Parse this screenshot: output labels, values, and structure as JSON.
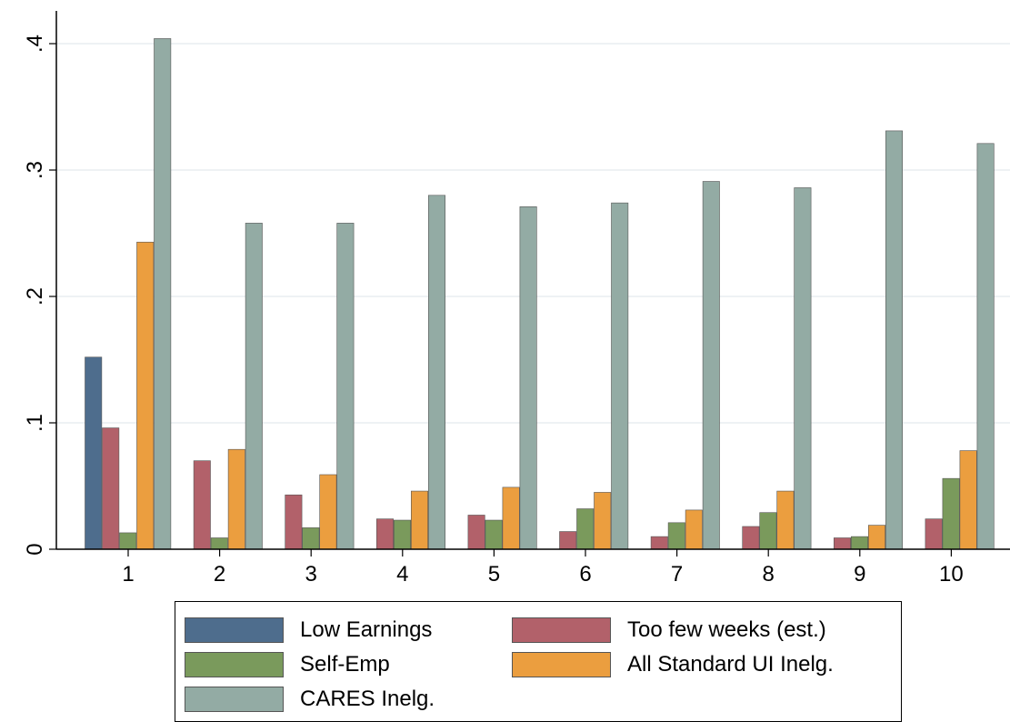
{
  "chart_data": {
    "type": "bar",
    "categories": [
      "1",
      "2",
      "3",
      "4",
      "5",
      "6",
      "7",
      "8",
      "9",
      "10"
    ],
    "series": [
      {
        "name": "Low Earnings",
        "color": "#4e6d8d",
        "values": [
          0.152,
          0,
          0,
          0,
          0,
          0,
          0,
          0,
          0,
          0
        ]
      },
      {
        "name": "Too few weeks (est.)",
        "color": "#b2616a",
        "values": [
          0.096,
          0.07,
          0.043,
          0.024,
          0.027,
          0.014,
          0.01,
          0.018,
          0.009,
          0.024
        ]
      },
      {
        "name": "Self-Emp",
        "color": "#7a9a5c",
        "values": [
          0.013,
          0.009,
          0.017,
          0.023,
          0.023,
          0.032,
          0.021,
          0.029,
          0.01,
          0.056
        ]
      },
      {
        "name": "All Standard UI Inelg.",
        "color": "#eb9e3f",
        "values": [
          0.243,
          0.079,
          0.059,
          0.046,
          0.049,
          0.045,
          0.031,
          0.046,
          0.019,
          0.078
        ]
      },
      {
        "name": "CARES Inelg.",
        "color": "#93aba4",
        "values": [
          0.404,
          0.258,
          0.258,
          0.28,
          0.271,
          0.274,
          0.291,
          0.286,
          0.331,
          0.321
        ]
      }
    ],
    "ylim": [
      0,
      0.4
    ],
    "yticks": [
      0,
      0.1,
      0.2,
      0.3,
      0.4
    ],
    "ytick_labels": [
      "0",
      ".1",
      ".2",
      ".3",
      ".4"
    ],
    "grid": true,
    "legend_placement": "bottom",
    "title": "",
    "xlabel": "",
    "ylabel": ""
  }
}
